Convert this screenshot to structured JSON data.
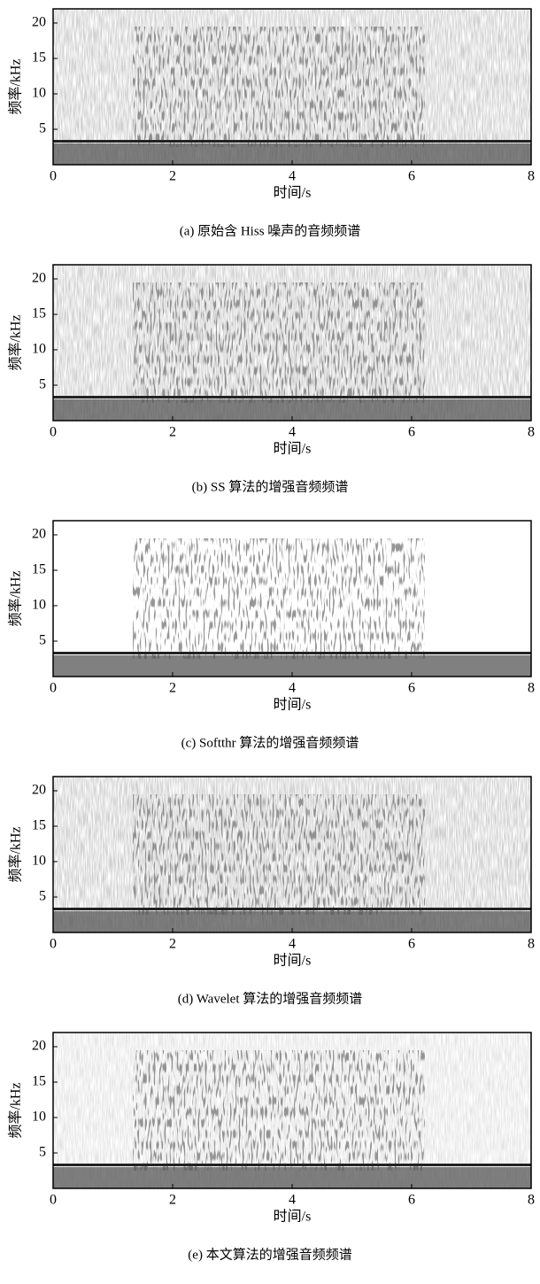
{
  "chart_data": [
    {
      "type": "spectrogram",
      "xlabel": "时间/s",
      "ylabel": "频率/kHz",
      "caption": "(a)  原始含 Hiss 噪声的音频频谱",
      "xlim": [
        0,
        8
      ],
      "ylim": [
        0,
        22
      ],
      "xticks": [
        0,
        2,
        4,
        6,
        8
      ],
      "yticks": [
        5,
        10,
        15,
        20
      ]
    },
    {
      "type": "spectrogram",
      "xlabel": "时间/s",
      "ylabel": "频率/kHz",
      "caption": "(b) SS 算法的增强音频频谱",
      "xlim": [
        0,
        8
      ],
      "ylim": [
        0,
        22
      ],
      "xticks": [
        0,
        2,
        4,
        6,
        8
      ],
      "yticks": [
        5,
        10,
        15,
        20
      ]
    },
    {
      "type": "spectrogram",
      "xlabel": "时间/s",
      "ylabel": "频率/kHz",
      "caption": "(c) Softthr 算法的增强音频频谱",
      "xlim": [
        0,
        8
      ],
      "ylim": [
        0,
        22
      ],
      "xticks": [
        0,
        2,
        4,
        6,
        8
      ],
      "yticks": [
        5,
        10,
        15,
        20
      ]
    },
    {
      "type": "spectrogram",
      "xlabel": "时间/s",
      "ylabel": "频率/kHz",
      "caption": "(d) Wavelet 算法的增强音频频谱",
      "xlim": [
        0,
        8
      ],
      "ylim": [
        0,
        22
      ],
      "xticks": [
        0,
        2,
        4,
        6,
        8
      ],
      "yticks": [
        5,
        10,
        15,
        20
      ]
    },
    {
      "type": "spectrogram",
      "xlabel": "时间/s",
      "ylabel": "频率/kHz",
      "caption": "(e)  本文算法的增强音频频谱",
      "xlim": [
        0,
        8
      ],
      "ylim": [
        0,
        22
      ],
      "xticks": [
        0,
        2,
        4,
        6,
        8
      ],
      "yticks": [
        5,
        10,
        15,
        20
      ]
    }
  ]
}
